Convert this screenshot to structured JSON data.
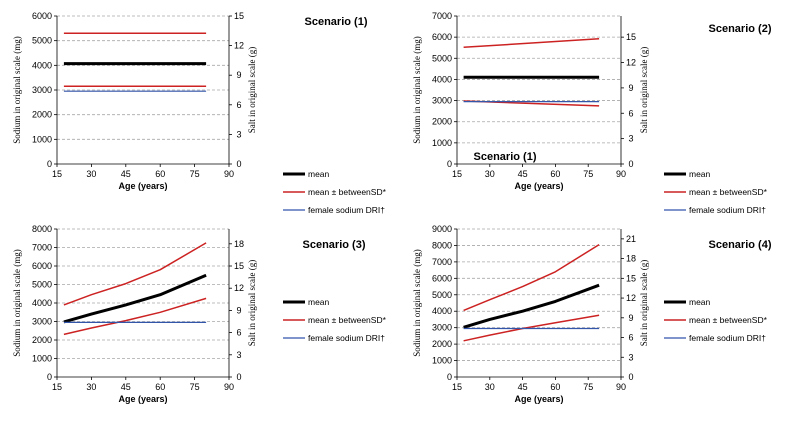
{
  "chart_data": [
    {
      "type": "line",
      "title": "Scenario (1)",
      "extra_text": "",
      "xlabel": "Age (years)",
      "ylabel_left": "Sodium in original scale (mg)",
      "ylabel_right": "Salt in original scale (g)",
      "xlim": [
        15,
        90
      ],
      "xticks": [
        15,
        30,
        45,
        60,
        75,
        90
      ],
      "ylim": [
        0,
        6000
      ],
      "yticks": [
        0,
        1000,
        2000,
        3000,
        4000,
        5000,
        6000
      ],
      "ylim_right": [
        0,
        15
      ],
      "yticks_right": [
        0,
        3,
        6,
        9,
        12,
        15
      ],
      "grid": true,
      "legend_position": "right",
      "series": [
        {
          "name": "mean",
          "color": "#000000",
          "width": 3,
          "x": [
            18,
            80
          ],
          "y": [
            4070,
            4070
          ]
        },
        {
          "name": "mean ± betweenSD*",
          "color": "#cc2222",
          "width": 1.5,
          "x": [
            18,
            80
          ],
          "y": [
            5300,
            5300
          ]
        },
        {
          "name": "",
          "color": "#cc2222",
          "width": 1.5,
          "x": [
            18,
            80
          ],
          "y": [
            3150,
            3150
          ]
        },
        {
          "name": "female sodium DRI†",
          "color": "#3355aa",
          "width": 1.2,
          "x": [
            18,
            80
          ],
          "y": [
            2950,
            2950
          ]
        }
      ]
    },
    {
      "type": "line",
      "title": "Scenario (2)",
      "extra_text": "Scenario (1)",
      "xlabel": "Age (years)",
      "ylabel_left": "Sodium in original scale (mg)",
      "ylabel_right": "Salt in original scale (g)",
      "xlim": [
        15,
        90
      ],
      "xticks": [
        15,
        30,
        45,
        60,
        75,
        90
      ],
      "ylim": [
        0,
        7000
      ],
      "yticks": [
        0,
        1000,
        2000,
        3000,
        4000,
        5000,
        6000,
        7000
      ],
      "ylim_right": [
        0,
        17.5
      ],
      "yticks_right": [
        0,
        3,
        6,
        9,
        12,
        15
      ],
      "grid": true,
      "legend_position": "right",
      "series": [
        {
          "name": "mean",
          "color": "#000000",
          "width": 3,
          "x": [
            18,
            80
          ],
          "y": [
            4100,
            4100
          ]
        },
        {
          "name": "mean ± betweenSD*",
          "color": "#cc2222",
          "width": 1.5,
          "x": [
            18,
            80
          ],
          "y": [
            5520,
            5920
          ]
        },
        {
          "name": "",
          "color": "#cc2222",
          "width": 1.5,
          "x": [
            18,
            80
          ],
          "y": [
            2980,
            2750
          ]
        },
        {
          "name": "female sodium DRI†",
          "color": "#3355aa",
          "width": 1.2,
          "x": [
            18,
            80
          ],
          "y": [
            2950,
            2950
          ]
        }
      ]
    },
    {
      "type": "line",
      "title": "Scenario (3)",
      "extra_text": "",
      "xlabel": "Age (years)",
      "ylabel_left": "Sodium in original scale (mg)",
      "ylabel_right": "Salt in original scale (g)",
      "xlim": [
        15,
        90
      ],
      "xticks": [
        15,
        30,
        45,
        60,
        75,
        90
      ],
      "ylim": [
        0,
        8000
      ],
      "yticks": [
        0,
        1000,
        2000,
        3000,
        4000,
        5000,
        6000,
        7000,
        8000
      ],
      "ylim_right": [
        0,
        20
      ],
      "yticks_right": [
        0,
        3,
        6,
        9,
        12,
        15,
        18
      ],
      "grid": true,
      "legend_position": "right",
      "series": [
        {
          "name": "mean",
          "color": "#000000",
          "width": 3,
          "x": [
            18,
            30,
            45,
            60,
            80
          ],
          "y": [
            2980,
            3400,
            3900,
            4450,
            5500
          ]
        },
        {
          "name": "mean ± betweenSD*",
          "color": "#cc2222",
          "width": 1.5,
          "x": [
            18,
            30,
            45,
            60,
            80
          ],
          "y": [
            3900,
            4450,
            5050,
            5800,
            7250
          ]
        },
        {
          "name": "",
          "color": "#cc2222",
          "width": 1.5,
          "x": [
            18,
            30,
            45,
            60,
            80
          ],
          "y": [
            2300,
            2650,
            3050,
            3500,
            4250
          ]
        },
        {
          "name": "female sodium DRI†",
          "color": "#3355aa",
          "width": 1.2,
          "x": [
            18,
            80
          ],
          "y": [
            2950,
            2950
          ]
        }
      ]
    },
    {
      "type": "line",
      "title": "Scenario (4)",
      "extra_text": "",
      "xlabel": "Age (years)",
      "ylabel_left": "Sodium in original scale (mg)",
      "ylabel_right": "Salt in original scale (g)",
      "xlim": [
        15,
        90
      ],
      "xticks": [
        15,
        30,
        45,
        60,
        75,
        90
      ],
      "ylim": [
        0,
        9000
      ],
      "yticks": [
        0,
        1000,
        2000,
        3000,
        4000,
        5000,
        6000,
        7000,
        8000,
        9000
      ],
      "ylim_right": [
        0,
        22.5
      ],
      "yticks_right": [
        0,
        3,
        6,
        9,
        12,
        15,
        18,
        21
      ],
      "grid": true,
      "legend_position": "right",
      "series": [
        {
          "name": "mean",
          "color": "#000000",
          "width": 3,
          "x": [
            18,
            30,
            45,
            60,
            80
          ],
          "y": [
            3020,
            3500,
            4000,
            4600,
            5580
          ]
        },
        {
          "name": "mean ± betweenSD*",
          "color": "#cc2222",
          "width": 1.5,
          "x": [
            18,
            30,
            45,
            60,
            80
          ],
          "y": [
            4050,
            4700,
            5500,
            6400,
            8050
          ]
        },
        {
          "name": "",
          "color": "#cc2222",
          "width": 1.5,
          "x": [
            18,
            30,
            45,
            60,
            80
          ],
          "y": [
            2200,
            2550,
            2950,
            3300,
            3750
          ]
        },
        {
          "name": "female sodium DRI†",
          "color": "#3355aa",
          "width": 1.2,
          "x": [
            18,
            80
          ],
          "y": [
            2950,
            2950
          ]
        }
      ]
    }
  ]
}
